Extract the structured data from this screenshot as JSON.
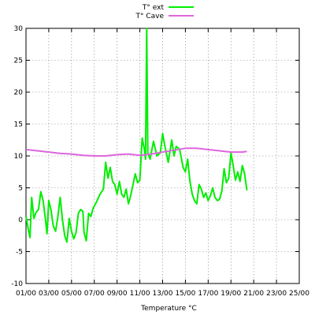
{
  "chart_data": {
    "type": "line",
    "xlabel": "Temperature °C",
    "ylabel": "",
    "ylim": [
      -10,
      30
    ],
    "yticks": [
      -10,
      -5,
      0,
      5,
      10,
      15,
      20,
      25,
      30
    ],
    "xlim": [
      0,
      24
    ],
    "xticks": [
      0,
      2,
      4,
      6,
      8,
      10,
      12,
      14,
      16,
      18,
      20,
      22,
      24
    ],
    "xticklabels": [
      "01/00",
      "03/00",
      "05/00",
      "07/00",
      "09/00",
      "11/00",
      "13/00",
      "15/00",
      "17/00",
      "19/00",
      "21/00",
      "23/00",
      "25/00"
    ],
    "grid": true,
    "legend_position": "top-center",
    "series": [
      {
        "name": "T° ext",
        "color": "#00ee00",
        "points": [
          [
            0.0,
            0.5
          ],
          [
            0.2,
            -1.5
          ],
          [
            0.35,
            -2.8
          ],
          [
            0.5,
            3.5
          ],
          [
            0.7,
            0.2
          ],
          [
            0.9,
            1.2
          ],
          [
            1.1,
            1.6
          ],
          [
            1.3,
            4.4
          ],
          [
            1.5,
            3.0
          ],
          [
            1.7,
            0.2
          ],
          [
            1.85,
            -2.2
          ],
          [
            2.0,
            3.0
          ],
          [
            2.2,
            1.5
          ],
          [
            2.4,
            -1.0
          ],
          [
            2.6,
            -1.8
          ],
          [
            2.8,
            0.5
          ],
          [
            3.0,
            3.5
          ],
          [
            3.2,
            0.0
          ],
          [
            3.4,
            -2.5
          ],
          [
            3.6,
            -3.5
          ],
          [
            3.8,
            0.2
          ],
          [
            4.0,
            -1.8
          ],
          [
            4.2,
            -3.0
          ],
          [
            4.4,
            -2.0
          ],
          [
            4.6,
            1.0
          ],
          [
            4.8,
            1.6
          ],
          [
            5.0,
            1.3
          ],
          [
            5.1,
            -2.0
          ],
          [
            5.3,
            -3.3
          ],
          [
            5.5,
            1.0
          ],
          [
            5.7,
            0.5
          ],
          [
            5.9,
            1.8
          ],
          [
            6.2,
            2.8
          ],
          [
            6.5,
            4.0
          ],
          [
            6.8,
            4.8
          ],
          [
            7.0,
            9.0
          ],
          [
            7.2,
            6.5
          ],
          [
            7.4,
            8.2
          ],
          [
            7.6,
            6.0
          ],
          [
            7.8,
            5.5
          ],
          [
            8.0,
            4.0
          ],
          [
            8.2,
            6.0
          ],
          [
            8.4,
            4.0
          ],
          [
            8.6,
            3.5
          ],
          [
            8.8,
            4.8
          ],
          [
            9.0,
            2.5
          ],
          [
            9.2,
            3.8
          ],
          [
            9.4,
            5.5
          ],
          [
            9.6,
            7.2
          ],
          [
            9.8,
            5.8
          ],
          [
            10.0,
            6.2
          ],
          [
            10.2,
            12.8
          ],
          [
            10.4,
            11.0
          ],
          [
            10.5,
            9.5
          ],
          [
            10.6,
            30.0
          ],
          [
            10.7,
            10.5
          ],
          [
            10.9,
            9.5
          ],
          [
            11.2,
            12.3
          ],
          [
            11.5,
            10.0
          ],
          [
            11.8,
            10.5
          ],
          [
            12.0,
            13.5
          ],
          [
            12.2,
            11.5
          ],
          [
            12.5,
            9.0
          ],
          [
            12.8,
            12.5
          ],
          [
            13.0,
            10.0
          ],
          [
            13.2,
            11.5
          ],
          [
            13.5,
            11.0
          ],
          [
            13.8,
            8.2
          ],
          [
            14.0,
            7.5
          ],
          [
            14.2,
            9.5
          ],
          [
            14.4,
            6.0
          ],
          [
            14.6,
            4.0
          ],
          [
            14.8,
            3.0
          ],
          [
            15.0,
            2.5
          ],
          [
            15.2,
            5.5
          ],
          [
            15.4,
            4.8
          ],
          [
            15.6,
            3.5
          ],
          [
            15.8,
            4.2
          ],
          [
            16.0,
            3.0
          ],
          [
            16.2,
            3.8
          ],
          [
            16.4,
            5.0
          ],
          [
            16.6,
            3.5
          ],
          [
            16.8,
            3.0
          ],
          [
            17.0,
            3.2
          ],
          [
            17.2,
            4.5
          ],
          [
            17.4,
            8.0
          ],
          [
            17.6,
            5.8
          ],
          [
            17.8,
            6.5
          ],
          [
            18.0,
            10.5
          ],
          [
            18.2,
            8.5
          ],
          [
            18.4,
            6.2
          ],
          [
            18.6,
            7.5
          ],
          [
            18.8,
            6.0
          ],
          [
            19.0,
            8.5
          ],
          [
            19.2,
            7.2
          ],
          [
            19.4,
            4.6
          ]
        ]
      },
      {
        "name": "T° Cave",
        "color": "#dd66dd",
        "points": [
          [
            0.0,
            11.0
          ],
          [
            1.0,
            10.8
          ],
          [
            2.0,
            10.6
          ],
          [
            3.0,
            10.4
          ],
          [
            4.0,
            10.3
          ],
          [
            5.0,
            10.1
          ],
          [
            6.0,
            10.0
          ],
          [
            7.0,
            10.0
          ],
          [
            8.0,
            10.2
          ],
          [
            9.0,
            10.3
          ],
          [
            10.0,
            10.1
          ],
          [
            11.0,
            10.3
          ],
          [
            12.0,
            10.6
          ],
          [
            13.0,
            10.9
          ],
          [
            14.0,
            11.2
          ],
          [
            15.0,
            11.2
          ],
          [
            16.0,
            11.0
          ],
          [
            17.0,
            10.8
          ],
          [
            18.0,
            10.6
          ],
          [
            19.0,
            10.6
          ],
          [
            19.4,
            10.7
          ]
        ]
      }
    ]
  }
}
